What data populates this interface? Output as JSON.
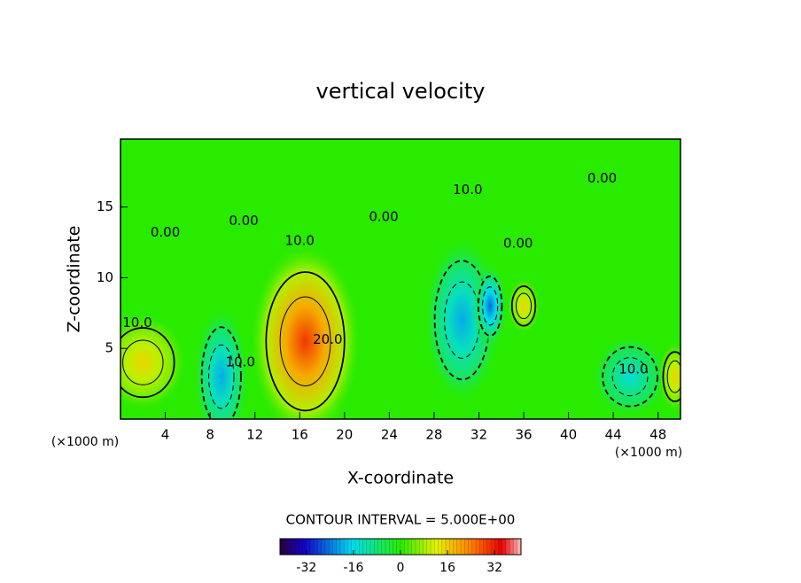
{
  "chart_data": {
    "type": "contour",
    "title": "vertical velocity",
    "x_label": "X-coordinate",
    "y_label": "Z-coordinate",
    "x_unit_left": "(×1000 m)",
    "x_unit_right": "(×1000 m)",
    "xlim": [
      0,
      50
    ],
    "xticks": [
      4,
      8,
      12,
      16,
      20,
      24,
      28,
      32,
      36,
      40,
      44,
      48
    ],
    "ylim": [
      0,
      19.8
    ],
    "yticks": [
      5,
      10,
      15
    ],
    "features": [
      {
        "x": 16.5,
        "y": 5.5,
        "value": 30,
        "rx": 5,
        "ry": 7
      },
      {
        "x": 9,
        "y": 3,
        "value": -20,
        "rx": 2.5,
        "ry": 5
      },
      {
        "x": 30.5,
        "y": 7,
        "value": -20,
        "rx": 3.5,
        "ry": 6
      },
      {
        "x": 33,
        "y": 8,
        "value": -25,
        "rx": 1.5,
        "ry": 3
      },
      {
        "x": 2,
        "y": 4,
        "value": 15,
        "rx": 4,
        "ry": 3.5
      },
      {
        "x": 36,
        "y": 8,
        "value": 15,
        "rx": 1.5,
        "ry": 2
      },
      {
        "x": 45.5,
        "y": 3,
        "value": -15,
        "rx": 3.5,
        "ry": 3
      },
      {
        "x": 49.5,
        "y": 3,
        "value": 15,
        "rx": 1.5,
        "ry": 2.5
      }
    ],
    "contour_labels": [
      {
        "label": "0.00",
        "x": 4,
        "y": 13.2
      },
      {
        "label": "10.0",
        "x": 1.5,
        "y": 6.8
      },
      {
        "label": "0.00",
        "x": 11,
        "y": 14
      },
      {
        "label": "10.0",
        "x": 16,
        "y": 12.6
      },
      {
        "label": "20.0",
        "x": 18.5,
        "y": 5.6
      },
      {
        "label": "10.0",
        "x": 10.7,
        "y": 4
      },
      {
        "label": "0.00",
        "x": 23.5,
        "y": 14.3
      },
      {
        "label": "10.0",
        "x": 31,
        "y": 16.2
      },
      {
        "label": "0.00",
        "x": 35.5,
        "y": 12.4
      },
      {
        "label": "0.00",
        "x": 43,
        "y": 17
      },
      {
        "label": "10.0",
        "x": 45.8,
        "y": 3.5
      }
    ],
    "colorbar_title": "CONTOUR INTERVAL = 5.000E+00",
    "clim": [
      -41,
      41
    ],
    "cticks": [
      -32,
      -16,
      0,
      16,
      32
    ]
  }
}
